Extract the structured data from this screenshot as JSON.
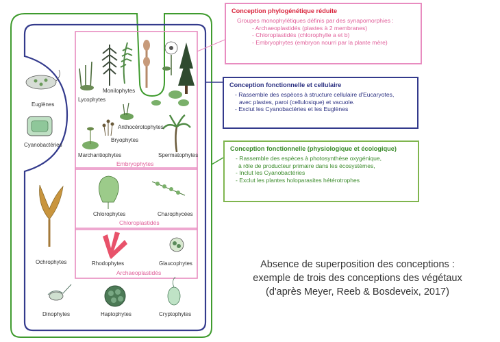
{
  "colors": {
    "green": "#3f9b2e",
    "navy": "#333a8c",
    "pink": "#e88cc0",
    "title_red": "#d9243c",
    "navy_text": "#2a2f80",
    "green_text": "#3a8a2a"
  },
  "groups": {
    "embryophytes": "Embryophytes",
    "chloroplastides": "Chloroplastidés",
    "archaeoplastides": "Archaeoplastidés"
  },
  "organisms": {
    "euglenes": "Euglènes",
    "cyanobacteries": "Cyanobactéries",
    "lycophytes": "Lycophytes",
    "monilophytes": "Monilophytes",
    "anthocerotophytes": "Anthocérotophytes",
    "bryophytes": "Bryophytes",
    "marchantiophytes": "Marchantiophytes",
    "spermatophytes": "Spermatophytes",
    "chlorophytes": "Chlorophytes",
    "charophycees": "Charophycées",
    "ochrophytes": "Ochrophytes",
    "rhodophytes": "Rhodophytes",
    "glaucophytes": "Glaucophytes",
    "dinophytes": "Dinophytes",
    "haptophytes": "Haptophytes",
    "cryptophytes": "Cryptophytes"
  },
  "boxes": {
    "phylo": {
      "title": "Conception phylogénétique réduite",
      "lines": [
        "Groupes monophylétiques définis par des synapomorphies :",
        "- Archaeoplastidés (plastes à 2 membranes)",
        "- Chloroplastidés (chlorophylle a et b)",
        "- Embryophytes (embryon nourri par la plante mère)"
      ]
    },
    "cellular": {
      "title": "Conception fonctionnelle et cellulaire",
      "lines": [
        "- Rassemble des espèces à structure cellulaire d'Eucaryotes,",
        "  avec plastes, paroi (cellulosique) et vacuole.",
        "- Exclut les Cyanobactéries et les Euglènes"
      ]
    },
    "functional": {
      "title": "Conception fonctionnelle (physiologique et écologique)",
      "lines": [
        "- Rassemble des espèces à photosynthèse oxygénique,",
        "  à rôle de producteur  primaire dans les écosystèmes,",
        "- Inclut les Cyanobactéries",
        "- Exclut les plantes holoparasites hétérotrophes"
      ]
    }
  },
  "caption": {
    "line1": "Absence de superposition des conceptions  :",
    "line2": "exemple de trois des conceptions des végétaux",
    "line3": "(d'après Meyer, Reeb & Bosdeveix, 2017)"
  }
}
